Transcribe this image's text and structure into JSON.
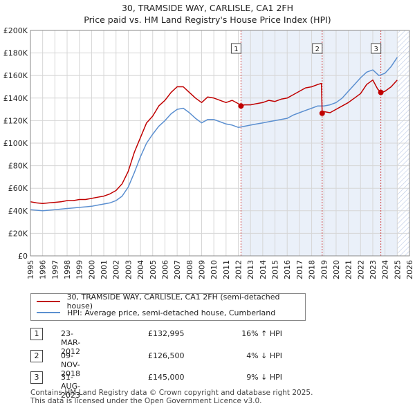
{
  "header": {
    "title": "30, TRAMSIDE WAY, CARLISLE, CA1 2FH",
    "subtitle": "Price paid vs. HM Land Registry's House Price Index (HPI)"
  },
  "colors": {
    "property": "#c00000",
    "hpi": "#5b8fd0",
    "highlight": "#e8eef8",
    "grid": "#d6d6d6",
    "marker_line": "#d04040"
  },
  "legend": {
    "property_label": "30, TRAMSIDE WAY, CARLISLE, CA1 2FH (semi-detached house)",
    "hpi_label": "HPI: Average price, semi-detached house, Cumberland"
  },
  "transactions": [
    {
      "num": "1",
      "date": "23-MAR-2012",
      "price": "£132,995",
      "hpi": "16% ↑ HPI"
    },
    {
      "num": "2",
      "date": "09-NOV-2018",
      "price": "£126,500",
      "hpi": "4% ↓ HPI"
    },
    {
      "num": "3",
      "date": "31-AUG-2023",
      "price": "£145,000",
      "hpi": "9% ↓ HPI"
    }
  ],
  "footer": {
    "line1": "Contains HM Land Registry data © Crown copyright and database right 2025.",
    "line2": "This data is licensed under the Open Government Licence v3.0."
  },
  "chart_data": {
    "type": "line",
    "title": "30, TRAMSIDE WAY, CARLISLE, CA1 2FH",
    "xlabel": "",
    "ylabel": "",
    "xlim": [
      1995,
      2026
    ],
    "ylim": [
      0,
      200000
    ],
    "y_ticks": [
      0,
      20000,
      40000,
      60000,
      80000,
      100000,
      120000,
      140000,
      160000,
      180000,
      200000
    ],
    "y_tick_labels": [
      "£0",
      "£20K",
      "£40K",
      "£60K",
      "£80K",
      "£100K",
      "£120K",
      "£140K",
      "£160K",
      "£180K",
      "£200K"
    ],
    "x_ticks": [
      1995,
      1996,
      1997,
      1998,
      1999,
      2000,
      2001,
      2002,
      2003,
      2004,
      2005,
      2006,
      2007,
      2008,
      2009,
      2010,
      2011,
      2012,
      2013,
      2014,
      2015,
      2016,
      2017,
      2018,
      2019,
      2020,
      2021,
      2022,
      2023,
      2024,
      2025,
      2026
    ],
    "x_tick_labels": [
      "1995",
      "1996",
      "1997",
      "1998",
      "1999",
      "2000",
      "2001",
      "2002",
      "2003",
      "2004",
      "2005",
      "2006",
      "2007",
      "2008",
      "2009",
      "2010",
      "2011",
      "2012",
      "2013",
      "2014",
      "2015",
      "2016",
      "2017",
      "2018",
      "2019",
      "2020",
      "2021",
      "2022",
      "2023",
      "2024",
      "2025",
      "2026"
    ],
    "grid": true,
    "future_shade_from": 2025.0,
    "series": [
      {
        "name": "30, TRAMSIDE WAY, CARLISLE, CA1 2FH (semi-detached house)",
        "color": "#c00000",
        "x": [
          1995.0,
          1995.5,
          1996.0,
          1996.5,
          1997.0,
          1997.5,
          1998.0,
          1998.5,
          1999.0,
          1999.5,
          2000.0,
          2000.5,
          2001.0,
          2001.5,
          2002.0,
          2002.5,
          2003.0,
          2003.5,
          2004.0,
          2004.5,
          2005.0,
          2005.5,
          2006.0,
          2006.5,
          2007.0,
          2007.5,
          2008.0,
          2008.5,
          2009.0,
          2009.5,
          2010.0,
          2010.5,
          2011.0,
          2011.5,
          2012.0,
          2012.22,
          2012.5,
          2013.0,
          2013.5,
          2014.0,
          2014.5,
          2015.0,
          2015.5,
          2016.0,
          2016.5,
          2017.0,
          2017.5,
          2018.0,
          2018.5,
          2018.8,
          2018.86,
          2019.0,
          2019.5,
          2020.0,
          2020.5,
          2021.0,
          2021.5,
          2022.0,
          2022.5,
          2023.0,
          2023.4,
          2023.66,
          2024.0,
          2024.5,
          2025.0
        ],
        "values": [
          48000,
          47000,
          46500,
          47000,
          47500,
          48000,
          49000,
          49000,
          50000,
          50000,
          51000,
          52000,
          53000,
          55000,
          58000,
          64000,
          75000,
          92000,
          105000,
          118000,
          124000,
          133000,
          138000,
          145000,
          150000,
          150000,
          145000,
          140000,
          136000,
          141000,
          140000,
          138000,
          136000,
          138000,
          135000,
          132995,
          134000,
          134000,
          135000,
          136000,
          138000,
          137000,
          139000,
          140000,
          143000,
          146000,
          149000,
          150000,
          152000,
          153000,
          126500,
          128000,
          127000,
          130000,
          133000,
          136000,
          140000,
          144000,
          152000,
          156000,
          148000,
          145000,
          146000,
          150000,
          156000
        ]
      },
      {
        "name": "HPI: Average price, semi-detached house, Cumberland",
        "color": "#5b8fd0",
        "x": [
          1995.0,
          1995.5,
          1996.0,
          1996.5,
          1997.0,
          1997.5,
          1998.0,
          1998.5,
          1999.0,
          1999.5,
          2000.0,
          2000.5,
          2001.0,
          2001.5,
          2002.0,
          2002.5,
          2003.0,
          2003.5,
          2004.0,
          2004.5,
          2005.0,
          2005.5,
          2006.0,
          2006.5,
          2007.0,
          2007.5,
          2008.0,
          2008.5,
          2009.0,
          2009.5,
          2010.0,
          2010.5,
          2011.0,
          2011.5,
          2012.0,
          2012.5,
          2013.0,
          2013.5,
          2014.0,
          2014.5,
          2015.0,
          2015.5,
          2016.0,
          2016.5,
          2017.0,
          2017.5,
          2018.0,
          2018.5,
          2019.0,
          2019.5,
          2020.0,
          2020.5,
          2021.0,
          2021.5,
          2022.0,
          2022.5,
          2023.0,
          2023.5,
          2024.0,
          2024.5,
          2025.0
        ],
        "values": [
          41000,
          40500,
          40000,
          40500,
          41000,
          41500,
          42000,
          42500,
          43000,
          43500,
          44000,
          45000,
          46000,
          47000,
          49000,
          53000,
          61000,
          74000,
          88000,
          100000,
          108000,
          115000,
          120000,
          126000,
          130000,
          131000,
          127000,
          122000,
          118000,
          121000,
          121000,
          119000,
          117000,
          116000,
          114000,
          115000,
          116000,
          117000,
          118000,
          119000,
          120000,
          121000,
          122000,
          125000,
          127000,
          129000,
          131000,
          133000,
          133000,
          134000,
          136000,
          140000,
          146000,
          152000,
          158000,
          163000,
          165000,
          160000,
          162000,
          168000,
          176000
        ]
      }
    ],
    "markers": [
      {
        "label": "1",
        "x": 2012.22,
        "y": 132995
      },
      {
        "label": "2",
        "x": 2018.86,
        "y": 126500
      },
      {
        "label": "3",
        "x": 2023.66,
        "y": 145000
      }
    ]
  }
}
